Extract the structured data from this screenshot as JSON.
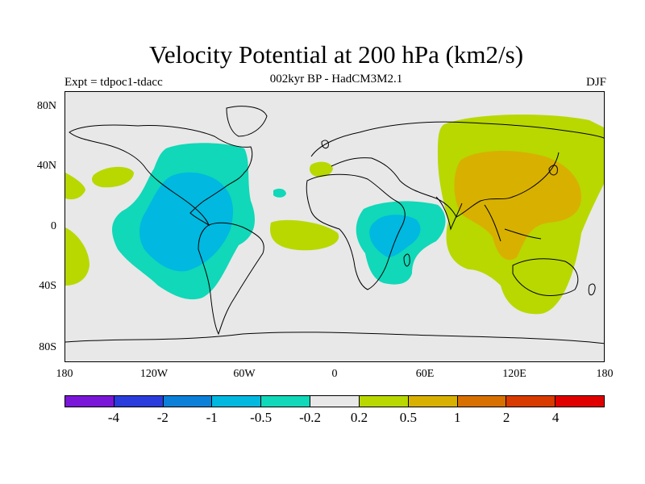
{
  "header": {
    "title": "Velocity Potential at 200 hPa (km2/s)",
    "subtitle": "002kyr BP - HadCM3M2.1",
    "left_label": "Expt = tdpoc1-tdacc",
    "right_label": "DJF"
  },
  "axes": {
    "y_labels": [
      "80N",
      "40N",
      "0",
      "40S",
      "80S"
    ],
    "x_labels": [
      "180",
      "120W",
      "60W",
      "0",
      "60E",
      "120E",
      "180"
    ]
  },
  "colorbar": {
    "colors": [
      "#7a16d8",
      "#2a3cdb",
      "#0a80d8",
      "#00b8e0",
      "#10d8b8",
      "#e8e8e8",
      "#b8d800",
      "#d8b000",
      "#d87000",
      "#d83a00",
      "#e00000"
    ],
    "labels": [
      "-4",
      "-2",
      "-1",
      "-0.5",
      "-0.2",
      "0.2",
      "0.5",
      "1",
      "2",
      "4"
    ]
  },
  "chart_data": {
    "type": "heatmap",
    "title": "Velocity Potential at 200 hPa (km2/s)",
    "subtitle": "002kyr BP - HadCM3M2.1",
    "season": "DJF",
    "experiment": "tdpoc1-tdacc",
    "xlim": [
      -180,
      180
    ],
    "ylim": [
      -90,
      90
    ],
    "levels": [
      -4,
      -2,
      -1,
      -0.5,
      -0.2,
      0.2,
      0.5,
      1,
      2,
      4
    ]
  }
}
